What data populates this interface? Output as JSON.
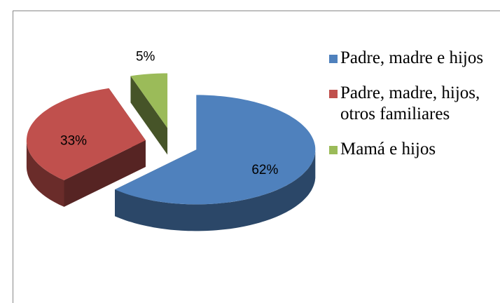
{
  "chart_data": {
    "type": "pie",
    "categories": [
      "Padre, madre e hijos",
      "Padre, madre, hijos, otros familiares",
      "Mamá e hijos"
    ],
    "values": [
      62,
      33,
      5
    ],
    "value_labels": [
      "62%",
      "33%",
      "5%"
    ],
    "colors": [
      "#4f81bd",
      "#c0504d",
      "#9bbb59"
    ],
    "legend": "right"
  }
}
